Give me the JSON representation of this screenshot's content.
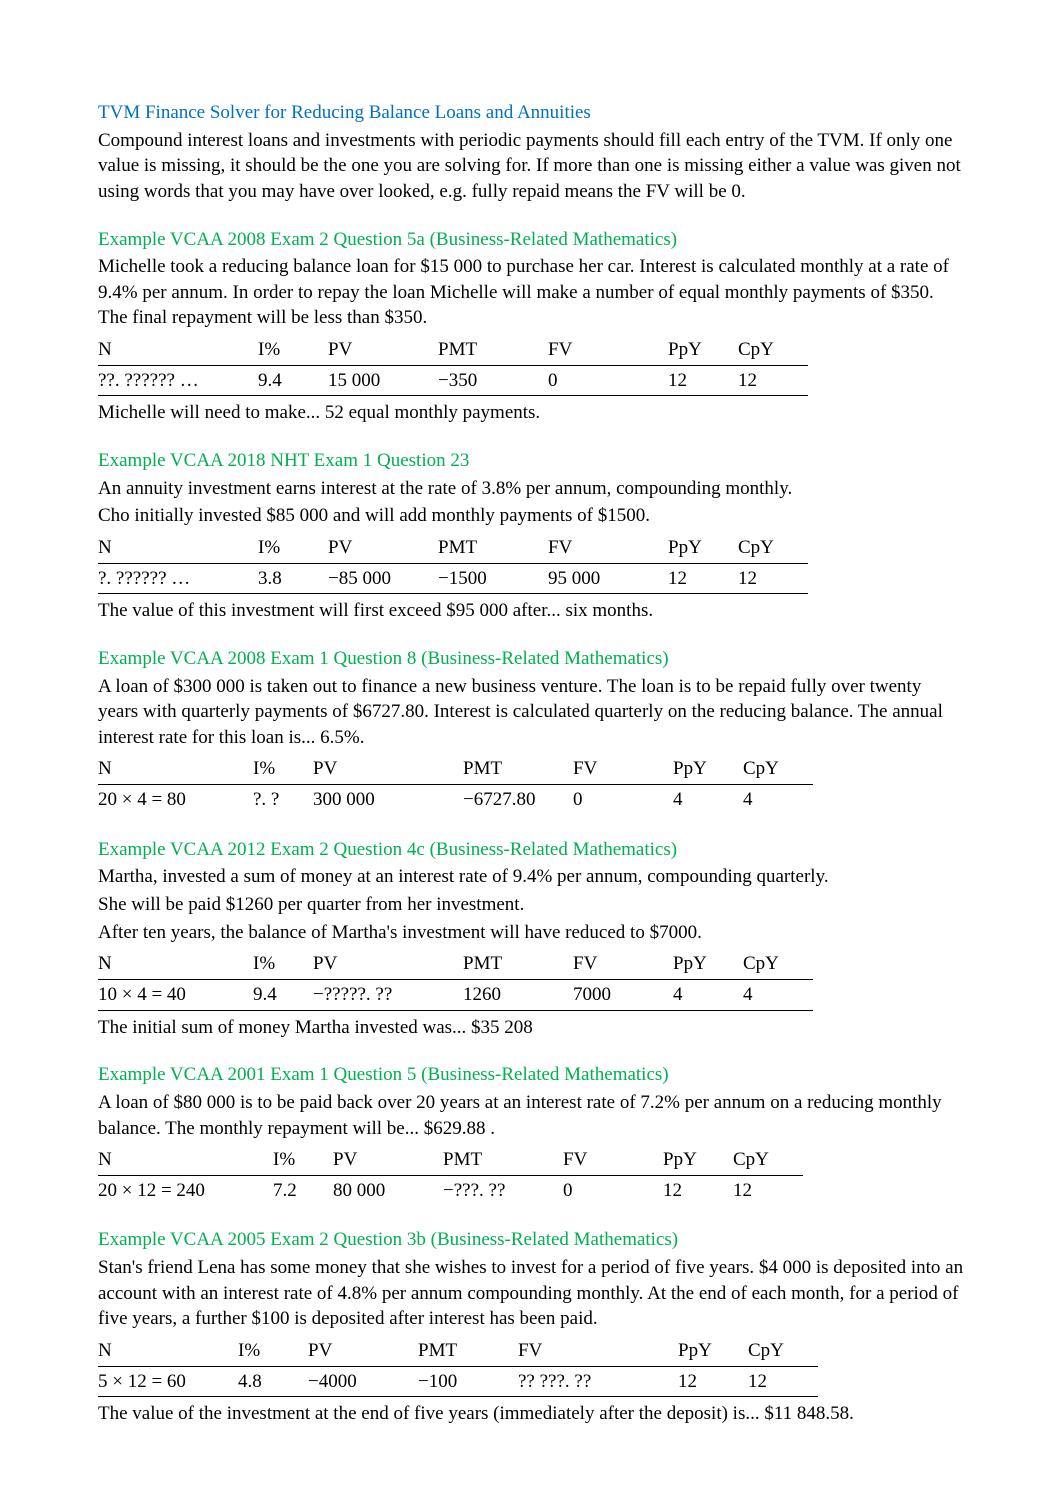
{
  "intro": {
    "title": "TVM Finance Solver for Reducing Balance Loans and Annuities",
    "body": "Compound interest loans and investments with periodic payments should fill each entry of the TVM. If only one value is missing, it should be the one you are solving for. If more than one is missing either a value was given not using words that you may have over looked, e.g. fully repaid means the FV will be 0."
  },
  "ex1": {
    "title": "Example VCAA 2008 Exam 2 Question 5a (Business-Related Mathematics)",
    "body1": "Michelle took a reducing balance loan for $15 000 to purchase her car. Interest is calculated monthly at a rate of 9.4% per annum. In order to repay the loan Michelle will make a number of equal monthly payments of $350. The final repayment will be less than $350.",
    "h": {
      "n": "N",
      "i": "I%",
      "pv": "PV",
      "pmt": "PMT",
      "fv": "FV",
      "ppy": "PpY",
      "cpy": "CpY"
    },
    "r": {
      "n": "??. ?????? …",
      "i": "9.4",
      "pv": "15 000",
      "pmt": "−350",
      "fv": "0",
      "ppy": "12",
      "cpy": "12"
    },
    "ans": "Michelle will need to make... 52 equal monthly payments."
  },
  "ex2": {
    "title": "Example VCAA 2018 NHT Exam 1 Question 23",
    "body1": "An annuity investment earns interest at the rate of 3.8% per annum, compounding monthly.",
    "body2": "Cho initially invested $85 000 and will add monthly payments of $1500.",
    "h": {
      "n": "N",
      "i": "I%",
      "pv": "PV",
      "pmt": "PMT",
      "fv": "FV",
      "ppy": "PpY",
      "cpy": "CpY"
    },
    "r": {
      "n": "?. ?????? …",
      "i": "3.8",
      "pv": "−85 000",
      "pmt": "−1500",
      "fv": "95 000",
      "ppy": "12",
      "cpy": "12"
    },
    "ans": "The value of this investment will first exceed $95 000 after... six months."
  },
  "ex3": {
    "title": "Example VCAA 2008 Exam 1 Question 8 (Business-Related Mathematics)",
    "body1": "A loan of $300 000 is taken out to finance a new business venture. The loan is to be repaid fully over twenty years with quarterly payments of $6727.80. Interest is calculated quarterly on the reducing balance. The annual interest rate for this loan is... 6.5%.",
    "h": {
      "n": "N",
      "i": "I%",
      "pv": "PV",
      "pmt": "PMT",
      "fv": "FV",
      "ppy": "PpY",
      "cpy": "CpY"
    },
    "r": {
      "n": "20 × 4 = 80",
      "i": "?. ?",
      "pv": "300 000",
      "pmt": "−6727.80",
      "fv": "0",
      "ppy": "4",
      "cpy": "4"
    }
  },
  "ex4": {
    "title": "Example VCAA 2012 Exam 2 Question 4c (Business-Related Mathematics)",
    "body1": "Martha, invested a sum of money at an interest rate of 9.4% per annum, compounding quarterly.",
    "body2": "She will be paid $1260 per quarter from her investment.",
    "body3": "After ten years, the balance of Martha's investment will have reduced to $7000.",
    "h": {
      "n": "N",
      "i": "I%",
      "pv": "PV",
      "pmt": "PMT",
      "fv": "FV",
      "ppy": "PpY",
      "cpy": "CpY"
    },
    "r": {
      "n": "10 × 4 = 40",
      "i": "9.4",
      "pv": "−?????. ??",
      "pmt": "1260",
      "fv": "7000",
      "ppy": "4",
      "cpy": "4"
    },
    "ans": "The initial sum of money Martha invested was... $35 208"
  },
  "ex5": {
    "title": "Example VCAA 2001 Exam 1 Question 5 (Business-Related Mathematics)",
    "body1": "A loan of $80 000 is to be paid back over 20 years at an interest rate of 7.2% per annum on a reducing monthly balance. The monthly repayment will be...  $629.88 .",
    "h": {
      "n": "N",
      "i": "I%",
      "pv": "PV",
      "pmt": "PMT",
      "fv": "FV",
      "ppy": "PpY",
      "cpy": "CpY"
    },
    "r": {
      "n": "20 × 12 = 240",
      "i": "7.2",
      "pv": "80 000",
      "pmt": "−???. ??",
      "fv": "0",
      "ppy": "12",
      "cpy": "12"
    }
  },
  "ex6": {
    "title": "Example VCAA 2005 Exam 2 Question 3b (Business-Related Mathematics)",
    "body1": "Stan's friend Lena has some money that she wishes to invest for a period of five years. $4 000 is deposited into an account with an interest rate of 4.8% per annum compounding monthly. At the end of each month, for a period of five years, a further $100 is deposited after interest has been paid.",
    "h": {
      "n": "N",
      "i": "I%",
      "pv": "PV",
      "pmt": "PMT",
      "fv": "FV",
      "ppy": "PpY",
      "cpy": "CpY"
    },
    "r": {
      "n": "5 × 12 = 60",
      "i": "4.8",
      "pv": "−4000",
      "pmt": "−100",
      "fv": "?? ???. ??",
      "ppy": "12",
      "cpy": "12"
    },
    "ans": "The value of the investment at the end of five years (immediately after the deposit) is... $11 848.58."
  },
  "cols": {
    "a": {
      "n": 160,
      "i": 70,
      "pv": 110,
      "pmt": 110,
      "fv": 120,
      "ppy": 70,
      "cpy": 70
    },
    "b": {
      "n": 155,
      "i": 60,
      "pv": 150,
      "pmt": 110,
      "fv": 100,
      "ppy": 70,
      "cpy": 70
    },
    "c": {
      "n": 175,
      "i": 60,
      "pv": 110,
      "pmt": 120,
      "fv": 100,
      "ppy": 70,
      "cpy": 70
    },
    "d": {
      "n": 140,
      "i": 70,
      "pv": 110,
      "pmt": 100,
      "fv": 160,
      "ppy": 70,
      "cpy": 70
    }
  }
}
